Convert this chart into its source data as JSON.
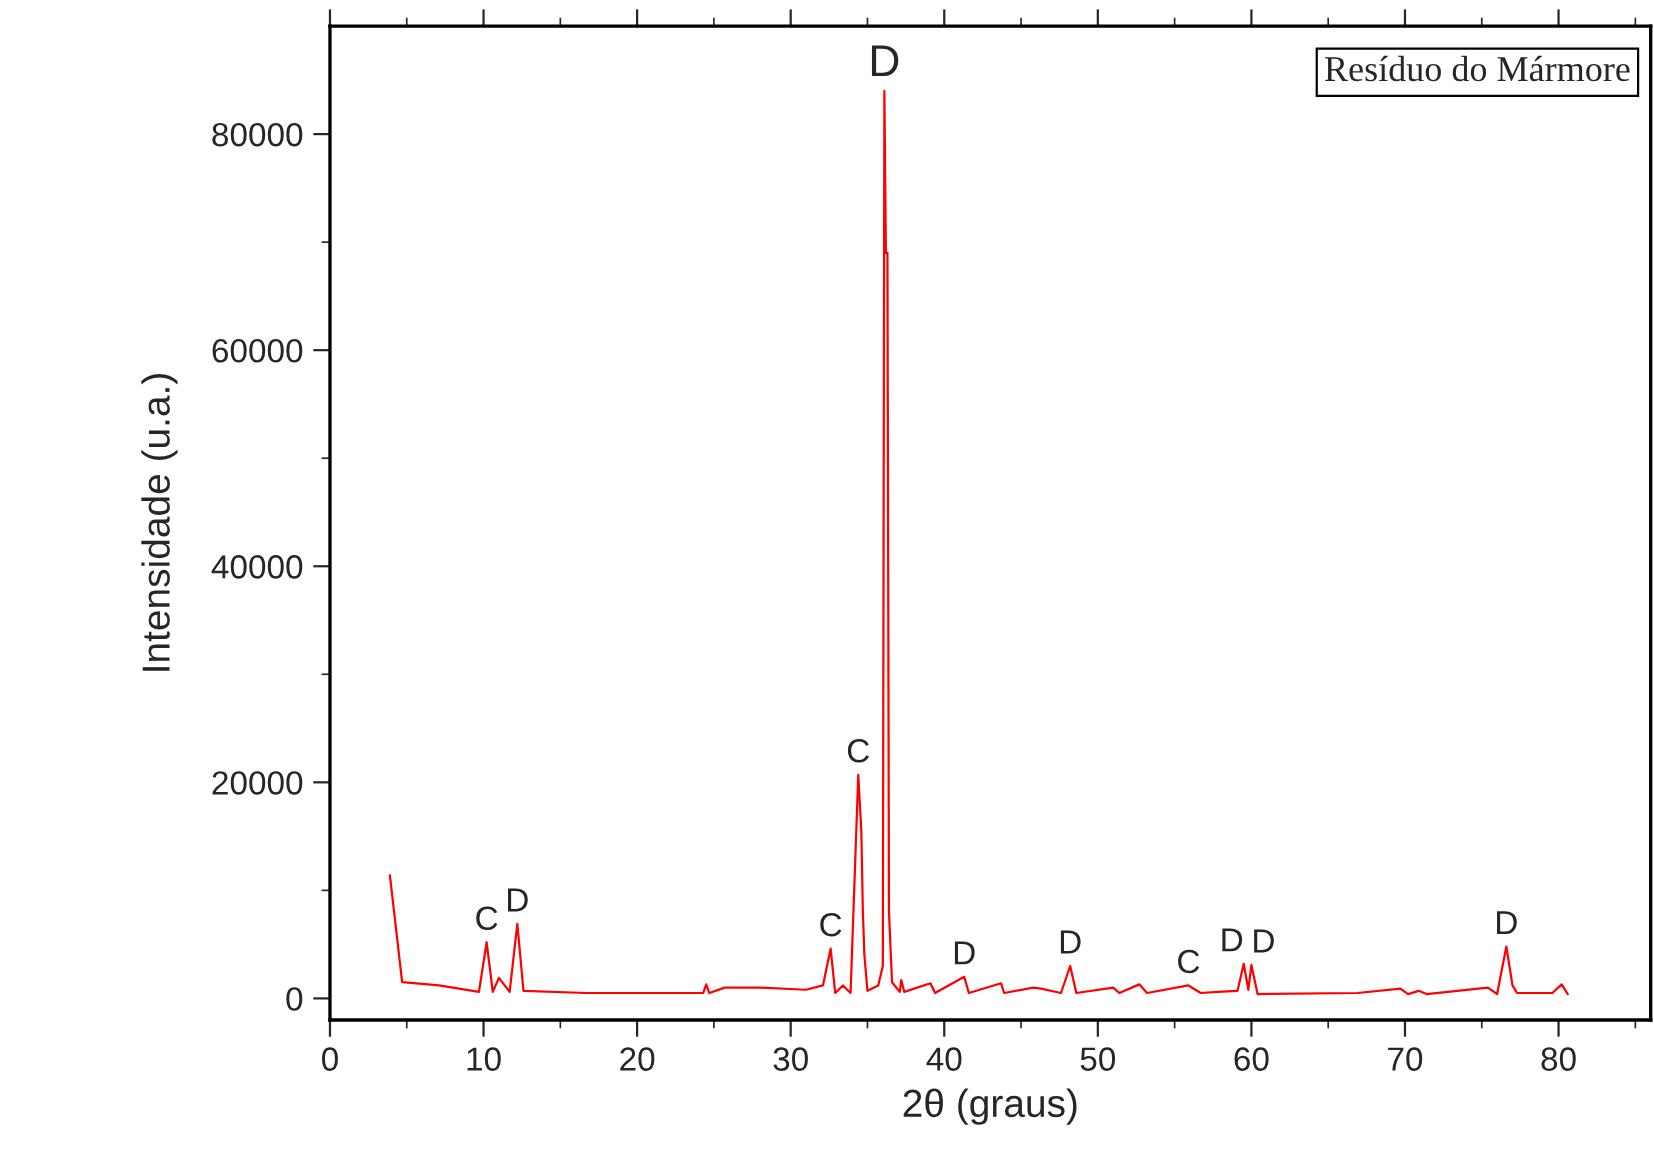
{
  "chart_data": {
    "type": "line",
    "xlabel": "2θ (graus)",
    "ylabel": "Intensidade (u.a.)",
    "x": [
      3.9,
      4.7,
      7.1,
      9.7,
      10.2,
      10.6,
      11.0,
      11.7,
      12.2,
      12.6,
      16.7,
      20.2,
      24.3,
      24.5,
      24.7,
      25.7,
      28.0,
      31.0,
      32.1,
      32.6,
      32.9,
      33.4,
      33.9,
      34.4,
      34.6,
      34.7,
      34.8,
      35.0,
      35.7,
      36.0,
      36.1,
      36.2,
      36.3,
      36.4,
      36.6,
      37.1,
      37.2,
      37.4,
      39.1,
      39.4,
      41.3,
      41.6,
      43.7,
      43.9,
      45.8,
      46.3,
      47.6,
      48.2,
      48.6,
      51.0,
      51.4,
      52.7,
      53.2,
      55.9,
      56.7,
      57.8,
      59.1,
      59.5,
      59.8,
      60.0,
      60.4,
      66.9,
      69.7,
      70.2,
      70.9,
      71.4,
      75.4,
      76.0,
      76.6,
      77.0,
      77.3,
      79.6,
      80.2,
      80.6
    ],
    "series": [
      {
        "color": "#ff0000",
        "values": [
          11400,
          1500,
          1200,
          600,
          5200,
          600,
          1900,
          600,
          6900,
          700,
          500,
          500,
          500,
          1300,
          500,
          1000,
          1000,
          800,
          1200,
          4600,
          500,
          1200,
          500,
          20700,
          15500,
          8000,
          4000,
          700,
          1200,
          3000,
          84000,
          69000,
          69000,
          8000,
          1500,
          600,
          1700,
          600,
          1400,
          500,
          2000,
          500,
          1400,
          500,
          1000,
          900,
          500,
          3000,
          500,
          1000,
          500,
          1300,
          500,
          1200,
          500,
          600,
          700,
          3200,
          800,
          3100,
          400,
          500,
          900,
          400,
          700,
          400,
          1000,
          400,
          4800,
          1200,
          500,
          500,
          1300,
          400
        ]
      }
    ],
    "xlim": [
      0,
      86
    ],
    "ylim": [
      -2000,
      90000
    ],
    "xticks": [
      0,
      10,
      20,
      30,
      40,
      50,
      60,
      70,
      80
    ],
    "yticks": [
      0,
      20000,
      40000,
      60000,
      80000
    ],
    "annotations": [
      {
        "text": "C",
        "x": 10.2,
        "y": 5200
      },
      {
        "text": "D",
        "x": 12.2,
        "y": 6900
      },
      {
        "text": "C",
        "x": 32.6,
        "y": 4600
      },
      {
        "text": "C",
        "x": 34.4,
        "y": 20700
      },
      {
        "text": "D",
        "x": 36.1,
        "y": 84000
      },
      {
        "text": "D",
        "x": 41.3,
        "y": 2000
      },
      {
        "text": "D",
        "x": 48.2,
        "y": 3000
      },
      {
        "text": "C",
        "x": 55.9,
        "y": 1200
      },
      {
        "text": "D",
        "x": 59.5,
        "y": 3200
      },
      {
        "text": "D",
        "x": 60.0,
        "y": 3100
      },
      {
        "text": "D",
        "x": 76.6,
        "y": 4800
      },
      "Resíduo do Mármore"
    ],
    "grid": false,
    "legend": false
  }
}
